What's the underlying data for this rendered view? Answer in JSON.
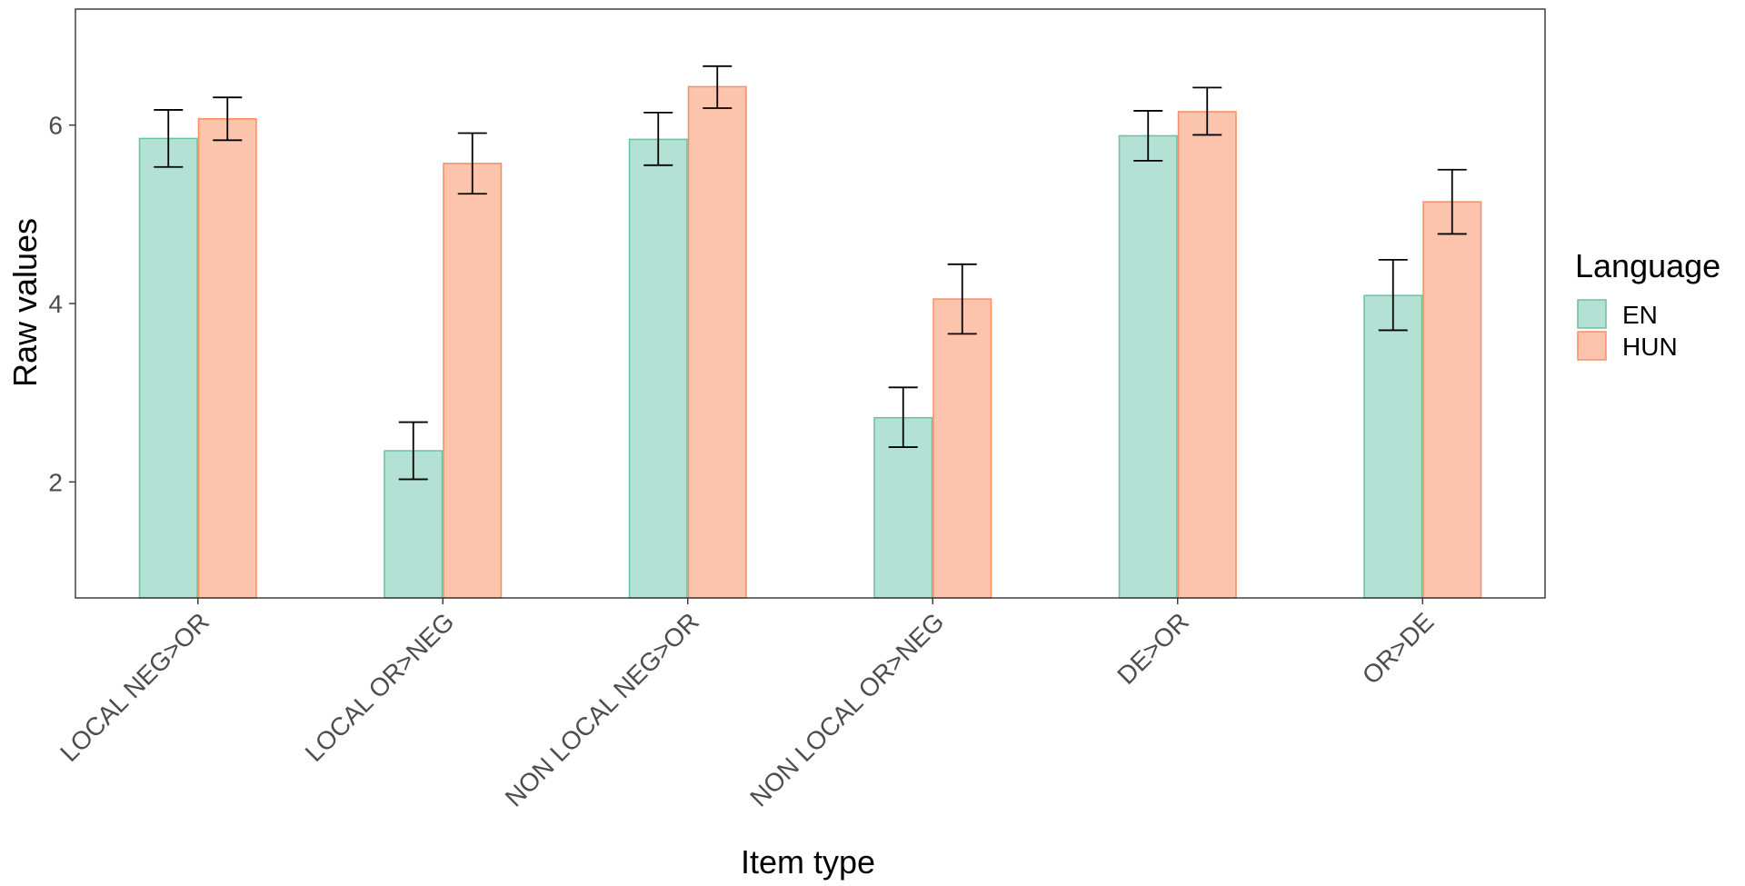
{
  "chart_data": {
    "type": "bar",
    "title": "",
    "xlabel": "Item type",
    "ylabel": "Raw values",
    "categories": [
      "LOCAL NEG>OR",
      "LOCAL OR>NEG",
      "NON LOCAL NEG>OR",
      "NON LOCAL OR>NEG",
      "DE>OR",
      "OR>DE"
    ],
    "ylim": [
      0.7,
      7.3
    ],
    "yticks": [
      2,
      4,
      6
    ],
    "grid": false,
    "legend": {
      "title": "Language",
      "position": "right"
    },
    "series": [
      {
        "name": "EN",
        "fill": "#b3e1d4",
        "stroke": "#66c2a5",
        "values": [
          5.85,
          2.35,
          5.84,
          2.72,
          5.88,
          4.09
        ],
        "error_low": [
          5.53,
          2.03,
          5.55,
          2.39,
          5.6,
          3.7
        ],
        "error_high": [
          6.17,
          2.67,
          6.14,
          3.06,
          6.16,
          4.49
        ]
      },
      {
        "name": "HUN",
        "fill": "#fcc4ac",
        "stroke": "#fc8d62",
        "values": [
          6.07,
          5.57,
          6.43,
          4.05,
          6.15,
          5.14
        ],
        "error_low": [
          5.83,
          5.23,
          6.19,
          3.66,
          5.89,
          4.78
        ],
        "error_high": [
          6.31,
          5.91,
          6.66,
          4.44,
          6.42,
          5.5
        ]
      }
    ]
  }
}
